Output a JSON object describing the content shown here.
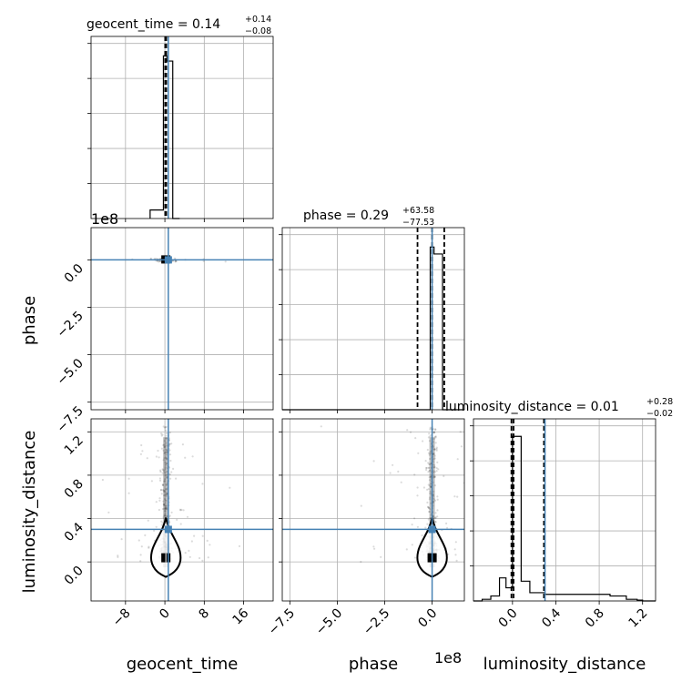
{
  "chart_data": {
    "type": "corner",
    "parameters": [
      "geocent_time",
      "phase",
      "luminosity_distance"
    ],
    "axis_labels": {
      "geocent_time": "geocent_time",
      "phase": "phase",
      "luminosity_distance": "luminosity_distance"
    },
    "offset_text": {
      "phase_y": "1e8",
      "phase_x": "1e8"
    },
    "ticks": {
      "geocent_time": {
        "labels": [
          "−8",
          "0",
          "8",
          "16"
        ],
        "values": [
          -8,
          0,
          8,
          16
        ],
        "range": [
          -15,
          22
        ]
      },
      "phase": {
        "labels": [
          "−7.5",
          "−5.0",
          "−2.5",
          "0.0"
        ],
        "values": [
          -7.5,
          -5.0,
          -2.5,
          0.0
        ],
        "range": [
          -7.9,
          1.7
        ]
      },
      "luminosity_distance": {
        "labels": [
          "0.0",
          "0.4",
          "0.8",
          "1.2"
        ],
        "values": [
          0.0,
          0.4,
          0.8,
          1.2
        ],
        "range": [
          -0.36,
          1.32
        ]
      }
    },
    "titles": {
      "geocent_time": {
        "prefix": "geocent_time = 0.14",
        "sup": "+0.14",
        "sub": "−0.08"
      },
      "phase": {
        "prefix": "phase = 0.29",
        "sup": "+63.58",
        "sub": "−77.53"
      },
      "luminosity_distance": {
        "prefix": "luminosity_distance = 0.01",
        "sup": "+0.28",
        "sub": "−0.02"
      }
    },
    "truths": {
      "geocent_time": 0.7,
      "phase": 0.0,
      "luminosity_distance": 0.3
    },
    "quantile_lines": {
      "geocent_time": [
        0.06,
        0.14,
        0.28
      ],
      "phase": [
        -0.77,
        0.0,
        0.64
      ],
      "luminosity_distance": [
        -0.01,
        0.01,
        0.29
      ]
    },
    "histograms": {
      "geocent_time": {
        "edges": [
          -3,
          -0.3,
          0.4,
          1.6,
          3
        ],
        "counts": [
          5,
          95,
          92,
          0
        ],
        "max": 100
      },
      "phase": {
        "edges": [
          -7.9,
          -0.1,
          0.1,
          0.55,
          1.7
        ],
        "counts": [
          0,
          95,
          91,
          0
        ],
        "max": 100
      },
      "luminosity_distance": {
        "edges": [
          -0.36,
          -0.28,
          -0.2,
          -0.12,
          -0.06,
          0.0,
          0.08,
          0.16,
          0.3,
          0.5,
          0.7,
          0.9,
          1.05,
          1.15,
          1.2,
          1.32
        ],
        "counts": [
          0,
          1,
          3,
          14,
          8,
          100,
          12,
          5,
          4,
          4,
          4,
          3,
          1,
          0.5,
          0
        ],
        "max": 104
      }
    },
    "grid": true
  }
}
